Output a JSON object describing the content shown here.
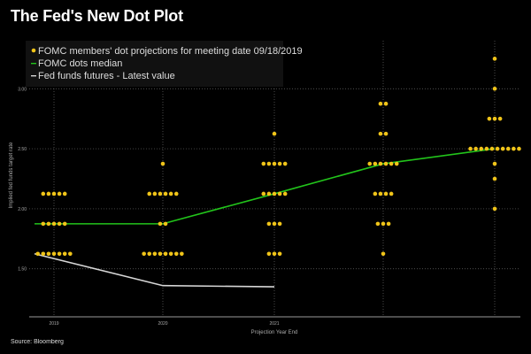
{
  "title": "The Fed's New Dot Plot",
  "source": "Source: Bloomberg",
  "colors": {
    "background": "#000000",
    "dots": "#f0c419",
    "median": "#22c41b",
    "futures": "#d6d6d6",
    "grid": "#6a6a6a"
  },
  "chart_data": {
    "type": "scatter",
    "title": "The Fed's New Dot Plot",
    "xlabel": "Projection Year End",
    "ylabel": "Implied fed funds target rate",
    "ylim": [
      1.1,
      3.4
    ],
    "x_ticks": [
      "2019",
      "2020",
      "2021",
      "",
      ""
    ],
    "y_ticks": [
      "1.50",
      "2.00",
      "2.50",
      "3.00"
    ],
    "grid": true,
    "legend": {
      "placement": "top-left",
      "entries": [
        "FOMC members' dot projections for meeting date 09/18/2019",
        "FOMC dots median",
        "Fed funds futures - Latest value"
      ]
    },
    "series": [
      {
        "name": "FOMC members' dot projections for meeting date 09/18/2019",
        "kind": "dots",
        "points": [
          {
            "x": 0,
            "y": 2.125,
            "count": 5
          },
          {
            "x": 0,
            "y": 1.875,
            "count": 5
          },
          {
            "x": 0,
            "y": 1.625,
            "count": 7
          },
          {
            "x": 1,
            "y": 2.375,
            "count": 1
          },
          {
            "x": 1,
            "y": 2.125,
            "count": 6
          },
          {
            "x": 1,
            "y": 1.875,
            "count": 2
          },
          {
            "x": 1,
            "y": 1.625,
            "count": 8
          },
          {
            "x": 2,
            "y": 2.625,
            "count": 1
          },
          {
            "x": 2,
            "y": 2.375,
            "count": 5
          },
          {
            "x": 2,
            "y": 2.125,
            "count": 5
          },
          {
            "x": 2,
            "y": 1.875,
            "count": 3
          },
          {
            "x": 2,
            "y": 1.625,
            "count": 3
          },
          {
            "x": 3,
            "y": 2.875,
            "count": 2
          },
          {
            "x": 3,
            "y": 2.625,
            "count": 2
          },
          {
            "x": 3,
            "y": 2.375,
            "count": 6
          },
          {
            "x": 3,
            "y": 2.125,
            "count": 4
          },
          {
            "x": 3,
            "y": 1.875,
            "count": 3
          },
          {
            "x": 3,
            "y": 1.625,
            "count": 1
          },
          {
            "x": 4,
            "y": 3.25,
            "count": 1
          },
          {
            "x": 4,
            "y": 3.0,
            "count": 1
          },
          {
            "x": 4,
            "y": 2.75,
            "count": 3
          },
          {
            "x": 4,
            "y": 2.5,
            "count": 10
          },
          {
            "x": 4,
            "y": 2.375,
            "count": 1
          },
          {
            "x": 4,
            "y": 2.25,
            "count": 1
          },
          {
            "x": 4,
            "y": 2.0,
            "count": 1
          }
        ]
      },
      {
        "name": "FOMC dots median",
        "kind": "line",
        "x": [
          0,
          1,
          2,
          3,
          4
        ],
        "y": [
          1.875,
          1.875,
          2.125,
          2.375,
          2.5
        ]
      },
      {
        "name": "Fed funds futures - Latest value",
        "kind": "line",
        "x": [
          0,
          1,
          2
        ],
        "y": [
          1.625,
          1.36,
          1.35
        ]
      }
    ]
  }
}
